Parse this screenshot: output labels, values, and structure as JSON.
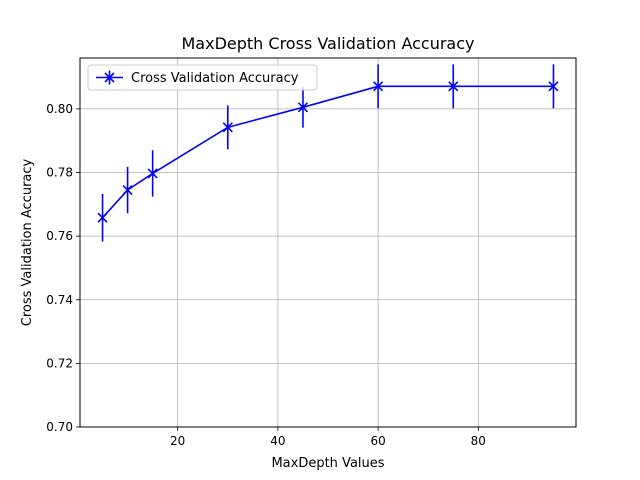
{
  "chart_data": {
    "type": "line",
    "title": "MaxDepth Cross Validation Accuracy",
    "xlabel": "MaxDepth Values",
    "ylabel": "Cross Validation Accuracy",
    "xlim": [
      0.5,
      99.5
    ],
    "ylim": [
      0.7,
      0.816
    ],
    "xticks": [
      20,
      40,
      60,
      80
    ],
    "yticks": [
      0.7,
      0.72,
      0.74,
      0.76,
      0.78,
      0.8
    ],
    "ytick_labels": [
      "0.70",
      "0.72",
      "0.74",
      "0.76",
      "0.78",
      "0.80"
    ],
    "grid": true,
    "legend_position": "top-left",
    "series": [
      {
        "name": "Cross Validation Accuracy",
        "color": "#0000ff",
        "marker": "x",
        "x": [
          5,
          10,
          15,
          30,
          45,
          60,
          75,
          95
        ],
        "y": [
          0.7658,
          0.7745,
          0.7797,
          0.7942,
          0.8005,
          0.8071,
          0.8071,
          0.8071
        ],
        "yerr": [
          0.0075,
          0.0073,
          0.0073,
          0.0069,
          0.0064,
          0.0069,
          0.0069,
          0.0069
        ]
      }
    ]
  }
}
